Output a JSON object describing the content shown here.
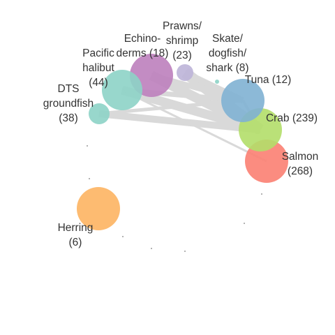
{
  "nodes": [
    {
      "id": "prawns",
      "label_lines": [
        "Prawns/",
        "shrimp",
        "(23)"
      ],
      "color": "#bcb4d8"
    },
    {
      "id": "skate",
      "label_lines": [
        "Skate/",
        "dogfish/",
        "shark (8)"
      ],
      "color": "#8dd3c7"
    },
    {
      "id": "echino",
      "label_lines": [
        "Echino-",
        "derms (18)"
      ],
      "color": "#bc80bd"
    },
    {
      "id": "pacific",
      "label_lines": [
        "Pacific",
        "halibut",
        "(44)"
      ],
      "color": "#8dd3c7"
    },
    {
      "id": "dts",
      "label_lines": [
        "DTS",
        "groundfish",
        "(38)"
      ],
      "color": "#8dd3c7"
    },
    {
      "id": "tuna",
      "label_lines": [
        "Tuna (12)"
      ],
      "color": "#80b1d3"
    },
    {
      "id": "crab",
      "label_lines": [
        "Crab (239)"
      ],
      "color": "#b3de69"
    },
    {
      "id": "salmon",
      "label_lines": [
        "Salmon",
        "(268)"
      ],
      "color": "#fb8072"
    },
    {
      "id": "herring",
      "label_lines": [
        "Herring",
        "(6)"
      ],
      "color": "#fdb462"
    }
  ],
  "edges": [
    {
      "from": "prawns",
      "to": "crab"
    },
    {
      "from": "prawns",
      "to": "tuna"
    },
    {
      "from": "echino",
      "to": "crab"
    },
    {
      "from": "echino",
      "to": "tuna"
    },
    {
      "from": "pacific",
      "to": "crab"
    },
    {
      "from": "pacific",
      "to": "tuna"
    },
    {
      "from": "pacific",
      "to": "salmon"
    },
    {
      "from": "dts",
      "to": "crab"
    },
    {
      "from": "dts",
      "to": "tuna"
    },
    {
      "from": "tuna",
      "to": "crab"
    },
    {
      "from": "salmon",
      "to": "pacific"
    }
  ],
  "edge_color": "#d9d9d9"
}
